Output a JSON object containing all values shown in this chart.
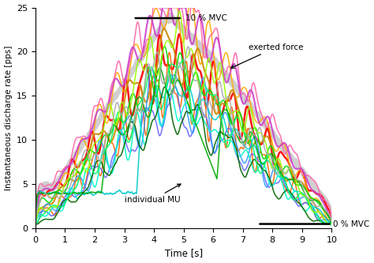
{
  "xlabel": "Time [s]",
  "ylabel": "Instantaneous discharge rate [pps]",
  "xlim": [
    0,
    10
  ],
  "ylim": [
    0,
    25
  ],
  "xticks": [
    0,
    1,
    2,
    3,
    4,
    5,
    6,
    7,
    8,
    9,
    10
  ],
  "yticks": [
    0,
    5,
    10,
    15,
    20,
    25
  ],
  "annotation_10mvc": "10 % MVC",
  "annotation_0mvc": "0 % MVC",
  "annotation_force": "exerted force",
  "annotation_mu": "individual MU",
  "line_colors": [
    "#FF0000",
    "#FF6600",
    "#FFAA00",
    "#CC8800",
    "#FF66AA",
    "#CC44CC",
    "#6666FF",
    "#3399FF",
    "#00CCCC",
    "#00FFCC",
    "#00DD00",
    "#00AA00",
    "#006600",
    "#00FF66",
    "#99FF00",
    "#AAAAAA"
  ],
  "seed": 42
}
